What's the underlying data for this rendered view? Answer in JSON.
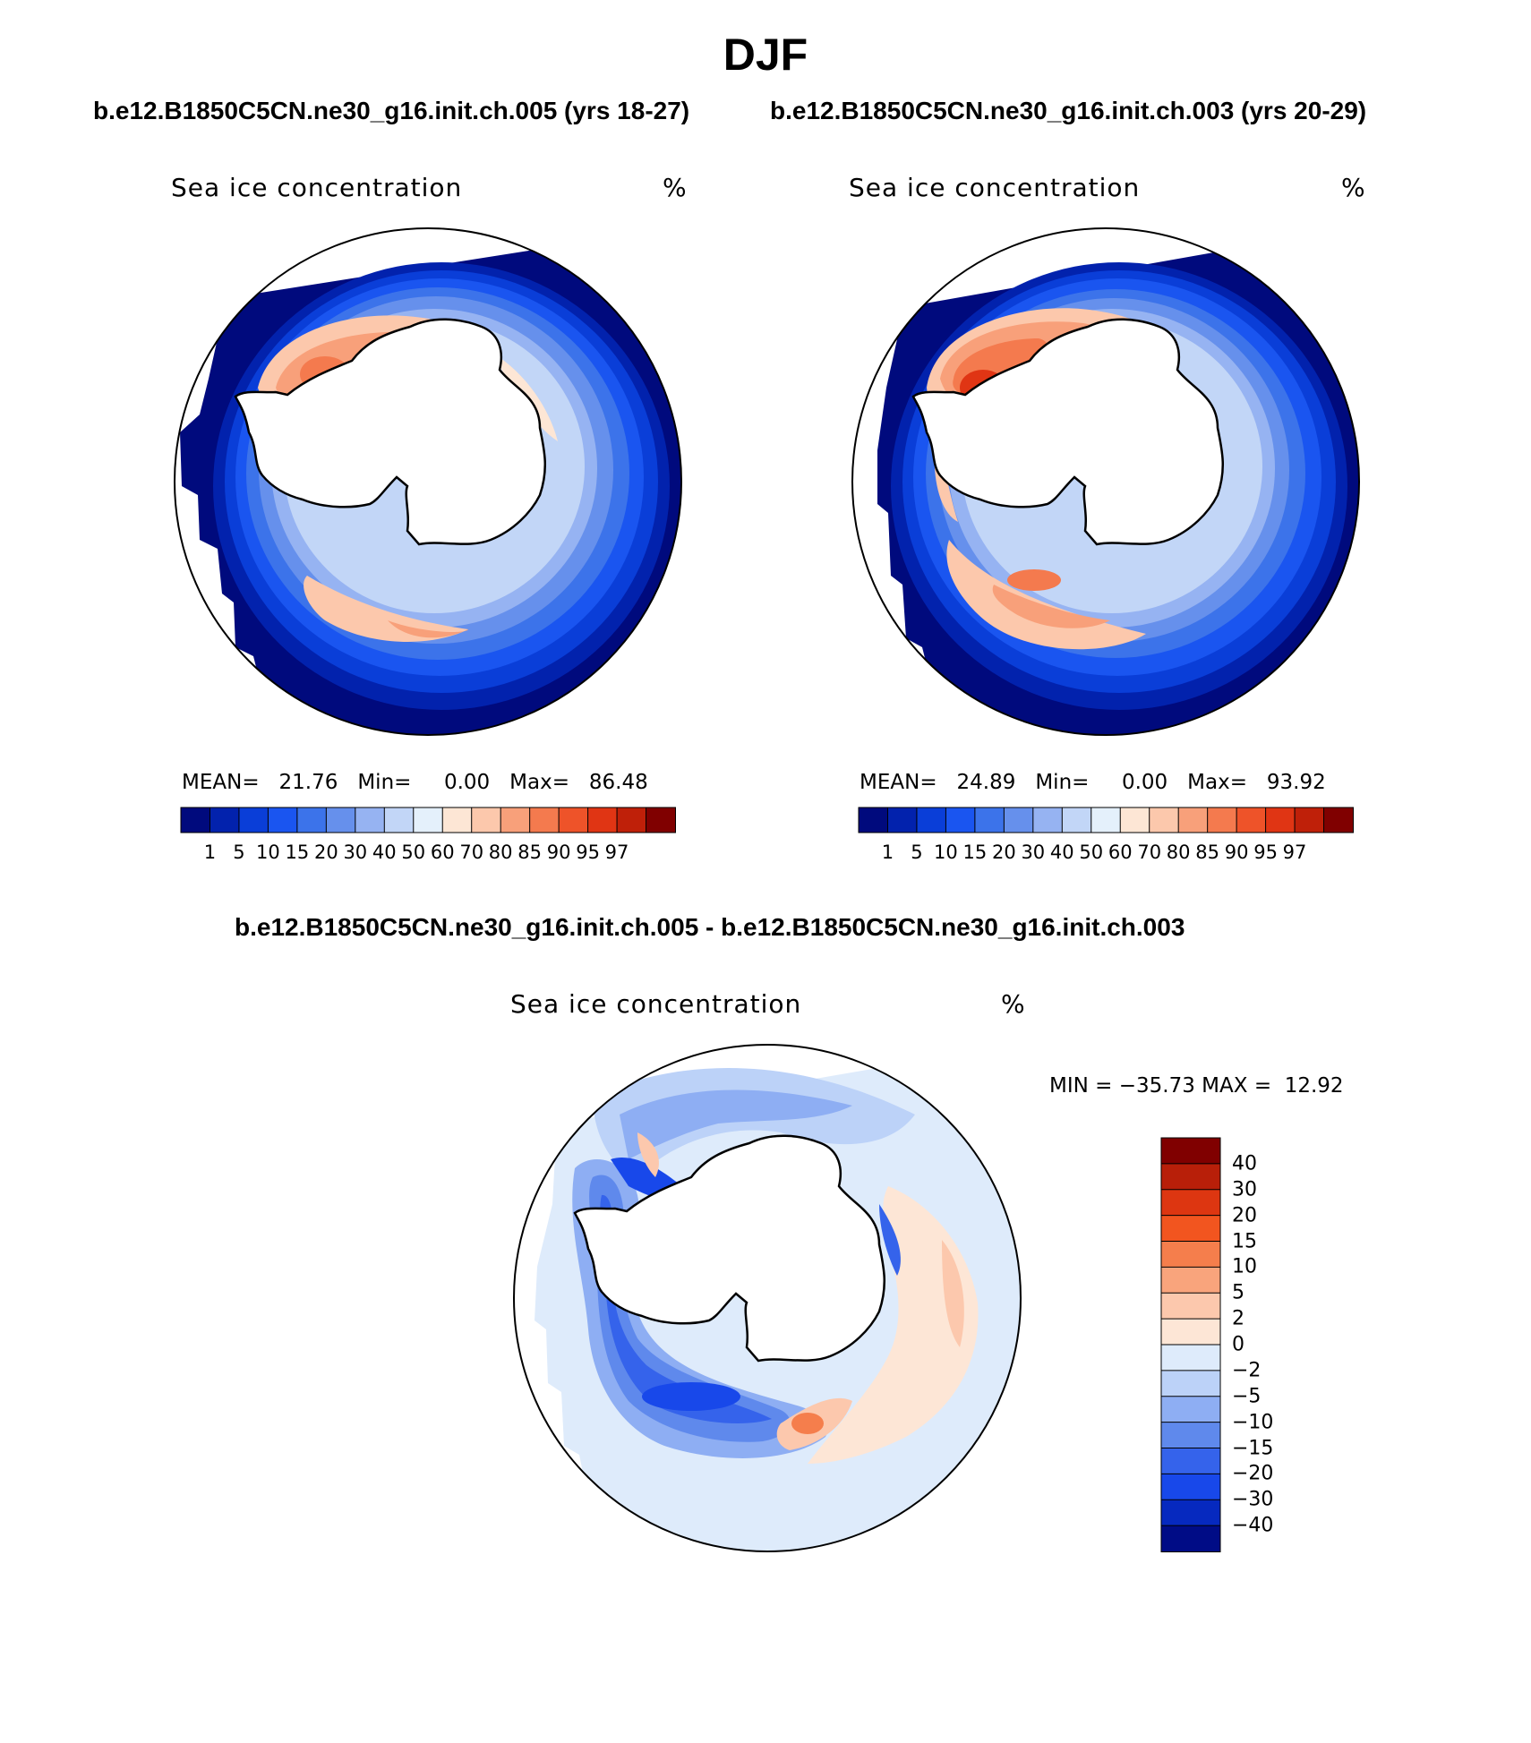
{
  "figure": {
    "title": "DJF",
    "header_left": "b.e12.B1850C5CN.ne30_g16.init.ch.005 (yrs 18-27)",
    "header_right": "b.e12.B1850C5CN.ne30_g16.init.ch.003 (yrs 20-29)",
    "diff_header": "b.e12.B1850C5CN.ne30_g16.init.ch.005 - b.e12.B1850C5CN.ne30_g16.init.ch.003"
  },
  "chart_data": [
    {
      "type": "filled-contour polar map",
      "region": "Southern Hemisphere (Antarctica)",
      "variable": "Sea ice concentration",
      "units": "%",
      "stats": {
        "mean_label": "MEAN=",
        "mean": "21.76",
        "min_label": "Min=",
        "min": "0.00",
        "max_label": "Max=",
        "max": "86.48"
      },
      "colorbar_levels": [
        "1",
        "5",
        "10",
        "15",
        "20",
        "30",
        "40",
        "50",
        "60",
        "70",
        "80",
        "85",
        "90",
        "95",
        "97"
      ],
      "colorbar_colors": [
        "#000a7d",
        "#0222ad",
        "#0a3ed8",
        "#1a55f0",
        "#3c73ea",
        "#6690ec",
        "#96b3f2",
        "#c2d6f7",
        "#e4f0fb",
        "#fde6d5",
        "#fcc8ac",
        "#f8a07a",
        "#f47a4e",
        "#ee5329",
        "#e03514",
        "#bf2009",
        "#800000"
      ]
    },
    {
      "type": "filled-contour polar map",
      "region": "Southern Hemisphere (Antarctica)",
      "variable": "Sea ice concentration",
      "units": "%",
      "stats": {
        "mean_label": "MEAN=",
        "mean": "24.89",
        "min_label": "Min=",
        "min": "0.00",
        "max_label": "Max=",
        "max": "93.92"
      },
      "colorbar_levels": [
        "1",
        "5",
        "10",
        "15",
        "20",
        "30",
        "40",
        "50",
        "60",
        "70",
        "80",
        "85",
        "90",
        "95",
        "97"
      ],
      "colorbar_colors": [
        "#000a7d",
        "#0222ad",
        "#0a3ed8",
        "#1a55f0",
        "#3c73ea",
        "#6690ec",
        "#96b3f2",
        "#c2d6f7",
        "#e4f0fb",
        "#fde6d5",
        "#fcc8ac",
        "#f8a07a",
        "#f47a4e",
        "#ee5329",
        "#e03514",
        "#bf2009",
        "#800000"
      ]
    },
    {
      "type": "filled-contour polar map (difference)",
      "region": "Southern Hemisphere (Antarctica)",
      "variable": "Sea ice concentration",
      "units": "%",
      "stats": {
        "min_label": "MIN =",
        "min": "−35.73",
        "max_label": "MAX =",
        "max": "12.92"
      },
      "colorbar_levels": [
        "40",
        "30",
        "20",
        "15",
        "10",
        "5",
        "2",
        "0",
        "−2",
        "−5",
        "−10",
        "−15",
        "−20",
        "−30",
        "−40"
      ],
      "colorbar_colors": [
        "#800000",
        "#b81f09",
        "#dd3611",
        "#f2551f",
        "#f57e4c",
        "#f9a47c",
        "#fcc8ad",
        "#fde6d6",
        "#deebfb",
        "#bcd2f8",
        "#8eaef3",
        "#5f89ec",
        "#3563eb",
        "#1848ea",
        "#0629bf",
        "#000c86"
      ]
    }
  ]
}
